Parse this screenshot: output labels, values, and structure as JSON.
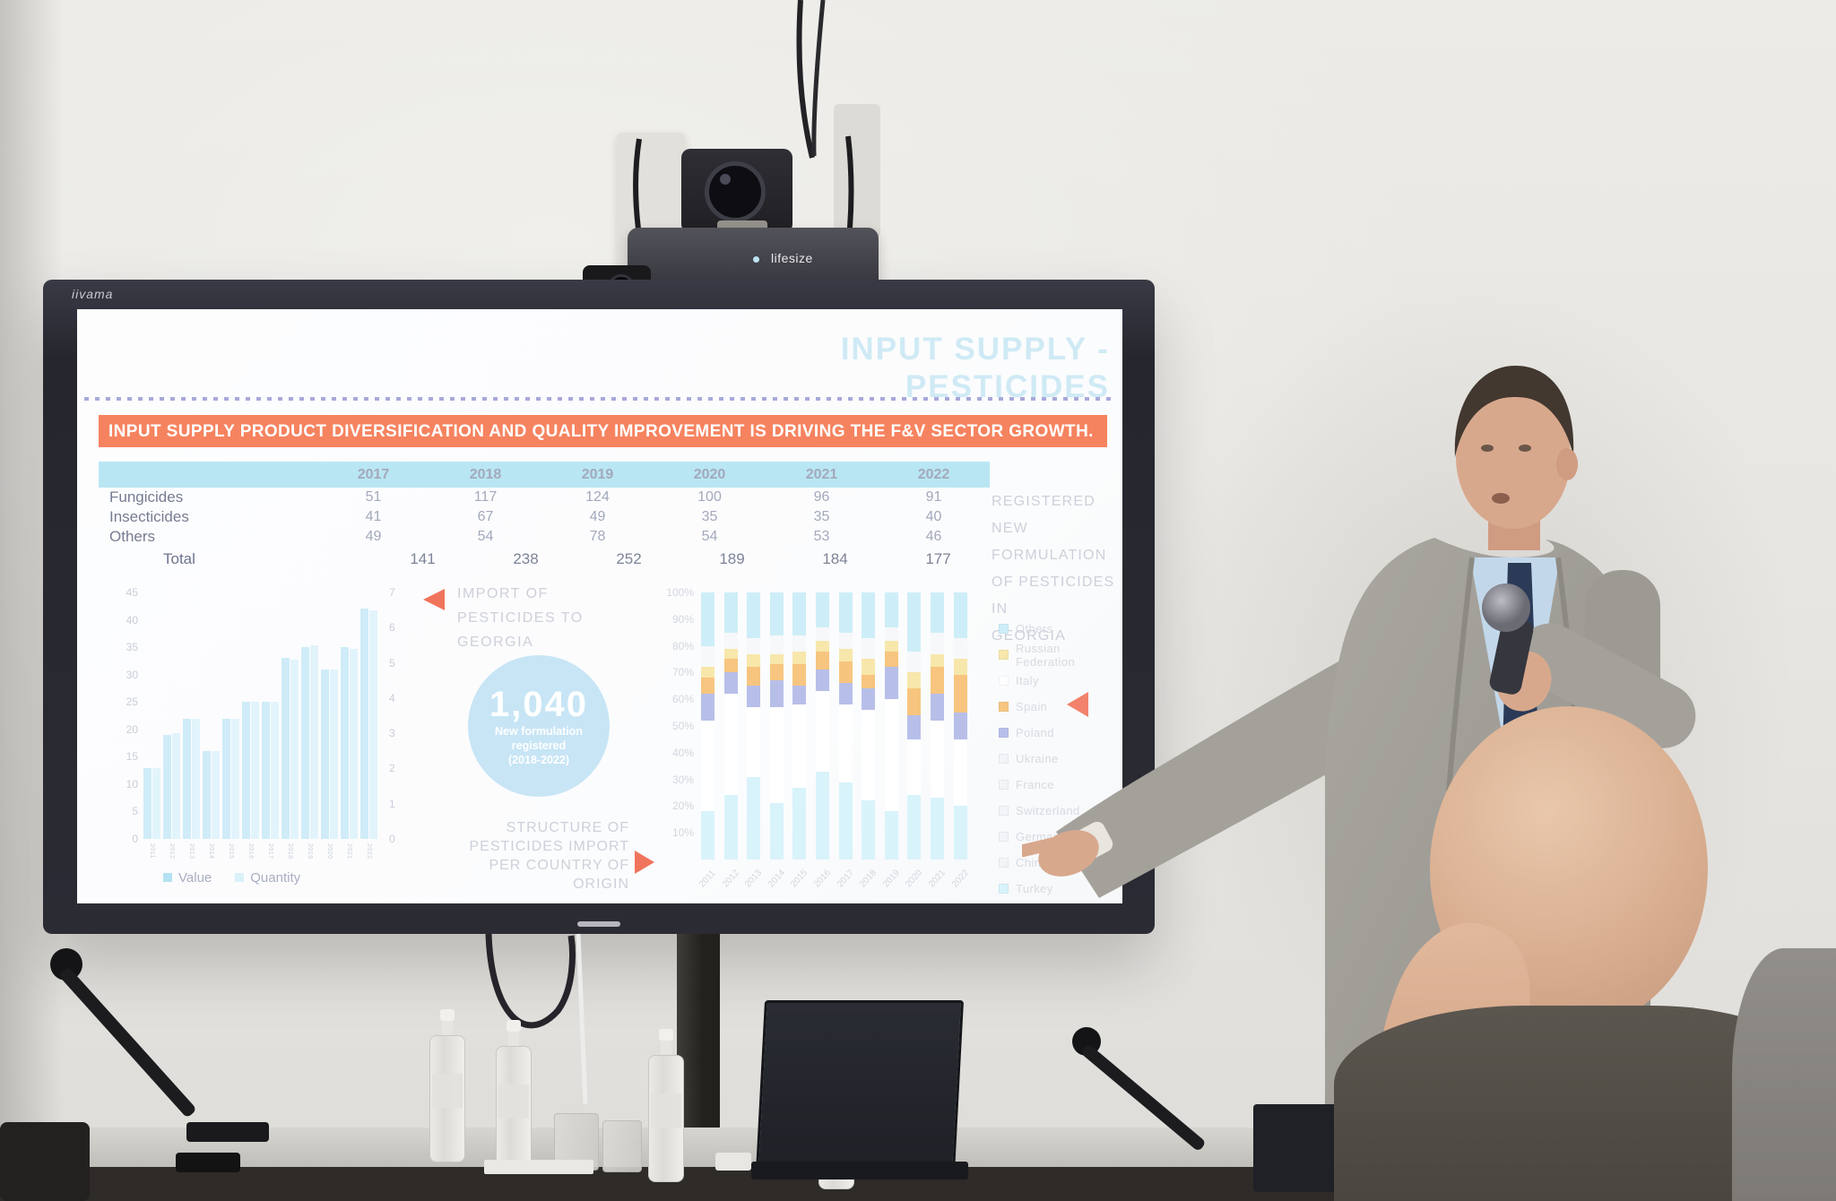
{
  "scene": {
    "tv_brand": "iivama",
    "camera_brand": "lifesize",
    "description": "Photo of a presenter in a gray suit pointing at a wall-mounted TV showing a pesticides slide; conference table with bottles, microphones and laptops in front; bald audience member in lower right."
  },
  "slide": {
    "title_line1": "INPUT SUPPLY -",
    "title_line2": "PESTICIDES",
    "banner": "INPUT SUPPLY PRODUCT DIVERSIFICATION AND QUALITY IMPROVEMENT IS DRIVING THE F&V SECTOR GROWTH.",
    "table": {
      "years": [
        "2017",
        "2018",
        "2019",
        "2020",
        "2021",
        "2022"
      ],
      "rows": [
        {
          "label": "Fungicides",
          "values": [
            "51",
            "117",
            "124",
            "100",
            "96",
            "91"
          ]
        },
        {
          "label": "Insecticides",
          "values": [
            "41",
            "67",
            "49",
            "35",
            "35",
            "40"
          ]
        },
        {
          "label": "Others",
          "values": [
            "49",
            "54",
            "78",
            "54",
            "53",
            "46"
          ]
        },
        {
          "label": "Total",
          "values": [
            "141",
            "238",
            "252",
            "189",
            "184",
            "177"
          ]
        }
      ]
    },
    "registered_note": [
      "REGISTERED NEW",
      "FORMULATION",
      "OF PESTICIDES IN",
      "GEORGIA"
    ],
    "import_note": [
      "IMPORT OF",
      "PESTICIDES TO",
      "GEORGIA"
    ],
    "badge": {
      "number": "1,040",
      "line1": "New formulation",
      "line2": "registered",
      "line3": "(2018-2022)"
    },
    "structure_note": [
      "STRUCTURE OF",
      "PESTICIDES IMPORT",
      "PER COUNTRY OF",
      "ORIGIN"
    ]
  },
  "chart_data": [
    {
      "type": "table",
      "title": "Registered new formulation of pesticides in Georgia",
      "columns": [
        "2017",
        "2018",
        "2019",
        "2020",
        "2021",
        "2022"
      ],
      "rows": [
        {
          "label": "Fungicides",
          "values": [
            51,
            117,
            124,
            100,
            96,
            91
          ]
        },
        {
          "label": "Insecticides",
          "values": [
            41,
            67,
            49,
            35,
            35,
            40
          ]
        },
        {
          "label": "Others",
          "values": [
            49,
            54,
            78,
            54,
            53,
            46
          ]
        },
        {
          "label": "Total",
          "values": [
            141,
            238,
            252,
            189,
            184,
            177
          ]
        }
      ]
    },
    {
      "type": "bar",
      "title": "Import of pesticides to Georgia",
      "categories": [
        "2011",
        "2012",
        "2013",
        "2014",
        "2015",
        "2016",
        "2017",
        "2018",
        "2019",
        "2020",
        "2021",
        "2022"
      ],
      "series": [
        {
          "name": "Value",
          "axis": "left",
          "values": [
            13,
            19,
            22,
            16,
            22,
            25,
            25,
            33,
            35,
            31,
            35,
            42
          ]
        },
        {
          "name": "Quantity",
          "axis": "right",
          "values": [
            2.0,
            3.0,
            3.4,
            2.5,
            3.4,
            3.9,
            3.9,
            5.1,
            5.5,
            4.8,
            5.4,
            6.5
          ]
        }
      ],
      "ylim_left": [
        0,
        45
      ],
      "yticks_left": [
        "45",
        "40",
        "35",
        "30",
        "25",
        "20",
        "15",
        "10",
        "5",
        "0"
      ],
      "ylim_right": [
        0,
        7
      ],
      "yticks_right": [
        "7",
        "6",
        "5",
        "4",
        "3",
        "2",
        "1",
        "0"
      ],
      "legend_position": "bottom",
      "colors": {
        "Value": "#cfecf8",
        "Quantity": "#e2f4fb"
      },
      "note": "values estimated from bar heights; rotated x labels barely legible"
    },
    {
      "type": "bar",
      "subtype": "stacked-100pct",
      "title": "Structure of pesticides import per country of origin",
      "categories": [
        "2011",
        "2012",
        "2013",
        "2014",
        "2015",
        "2016",
        "2017",
        "2018",
        "2019",
        "2020",
        "2021",
        "2022"
      ],
      "yticks": [
        "100%",
        "90%",
        "80%",
        "70%",
        "60%",
        "50%",
        "40%",
        "30%",
        "20%",
        "10%"
      ],
      "stack_order_top_to_bottom": [
        "Others",
        "Italy",
        "Russian Federation",
        "Spain",
        "Poland",
        "pale middle countries",
        "Turkey"
      ],
      "series": [
        {
          "name": "Others",
          "color": "#cdeef8",
          "values": [
            20,
            15,
            17,
            16,
            16,
            13,
            15,
            17,
            13,
            22,
            15,
            17
          ]
        },
        {
          "name": "Italy",
          "color": "#f6f8fa",
          "values": [
            8,
            6,
            6,
            7,
            6,
            5,
            6,
            8,
            5,
            8,
            8,
            8
          ]
        },
        {
          "name": "Russian Federation",
          "color": "#f7e7ab",
          "values": [
            4,
            4,
            5,
            4,
            5,
            4,
            5,
            6,
            4,
            6,
            5,
            6
          ]
        },
        {
          "name": "Spain",
          "color": "#f7c57f",
          "values": [
            6,
            5,
            7,
            6,
            8,
            7,
            8,
            5,
            6,
            10,
            10,
            14
          ]
        },
        {
          "name": "Poland",
          "color": "#b7bfe9",
          "values": [
            10,
            8,
            8,
            10,
            7,
            8,
            8,
            8,
            12,
            9,
            10,
            10
          ]
        },
        {
          "name": "Ukraine / France / Switzerland / Germany / China (pale, indistinct)",
          "color": "#ffffff",
          "values": [
            34,
            38,
            26,
            36,
            31,
            30,
            29,
            34,
            42,
            21,
            29,
            25
          ]
        },
        {
          "name": "Turkey",
          "color": "#d9f3fb",
          "values": [
            18,
            24,
            31,
            21,
            27,
            33,
            29,
            22,
            18,
            24,
            23,
            20
          ]
        }
      ],
      "legend": [
        {
          "label": "Others",
          "color": "#cdeef8"
        },
        {
          "label": "Russian Federation",
          "color": "#f7e7ab"
        },
        {
          "label": "Italy",
          "color": "#ffffff"
        },
        {
          "label": "Spain",
          "color": "#f7c57f"
        },
        {
          "label": "Poland",
          "color": "#b7bfe9"
        },
        {
          "label": "Ukraine",
          "color": "#f2f4f7"
        },
        {
          "label": "France",
          "color": "#f2f4f7"
        },
        {
          "label": "Switzerland",
          "color": "#f2f4f7"
        },
        {
          "label": "Germany",
          "color": "#f2f4f7"
        },
        {
          "label": "China",
          "color": "#f2f4f7"
        },
        {
          "label": "Turkey",
          "color": "#d9f3fb"
        }
      ],
      "note": "percentages estimated from segment heights; legend names partially legible in photo"
    }
  ]
}
